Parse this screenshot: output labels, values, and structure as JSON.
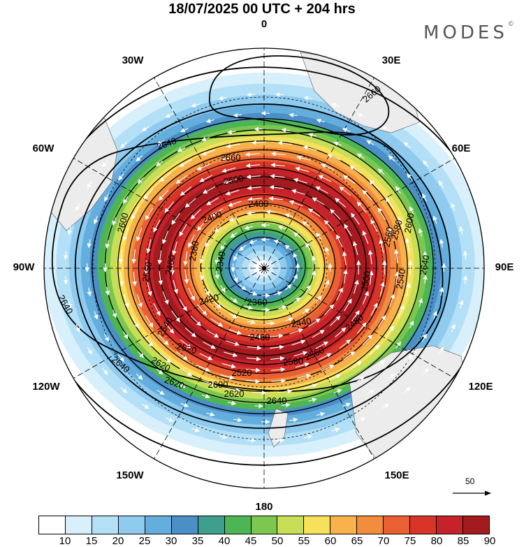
{
  "header": {
    "title": "18/07/2025  00 UTC  + 204 hrs",
    "brand": "MODES",
    "brand_mark": "©"
  },
  "map": {
    "projection": "south-polar-stereographic",
    "longitude_labels": [
      "0",
      "30E",
      "60E",
      "90E",
      "120E",
      "150E",
      "180",
      "150W",
      "120W",
      "90W",
      "60W",
      "30W"
    ],
    "contour_labels": [
      "2660",
      "2640",
      "2660",
      "2500",
      "2400",
      "2400",
      "2340",
      "2380",
      "2600",
      "2560",
      "2460",
      "2420",
      "2360",
      "2440",
      "2460",
      "2520",
      "2500",
      "2540",
      "2560",
      "2580",
      "2620",
      "2600",
      "2620",
      "2640",
      "2520",
      "2620",
      "2580",
      "2640",
      "2640",
      "2640",
      "2540",
      "2480",
      "2560",
      "2600"
    ],
    "reference_vector": "50",
    "colors": {
      "land": "#eeeeee",
      "contour": "#000000",
      "wind_vectors": "#ffffff"
    }
  },
  "colorbar": {
    "ticks": [
      "10",
      "15",
      "20",
      "25",
      "30",
      "35",
      "40",
      "45",
      "50",
      "55",
      "60",
      "65",
      "70",
      "75",
      "80",
      "85",
      "90"
    ],
    "colors": [
      "#ffffff",
      "#d7f0fb",
      "#b3e0f6",
      "#8ecbef",
      "#64aede",
      "#4b8fc7",
      "#3f9e8e",
      "#4db553",
      "#7cc750",
      "#c8de57",
      "#f7e15b",
      "#f8b14b",
      "#f28d3e",
      "#ea6034",
      "#d93428",
      "#c5222a",
      "#a31b1f"
    ]
  }
}
